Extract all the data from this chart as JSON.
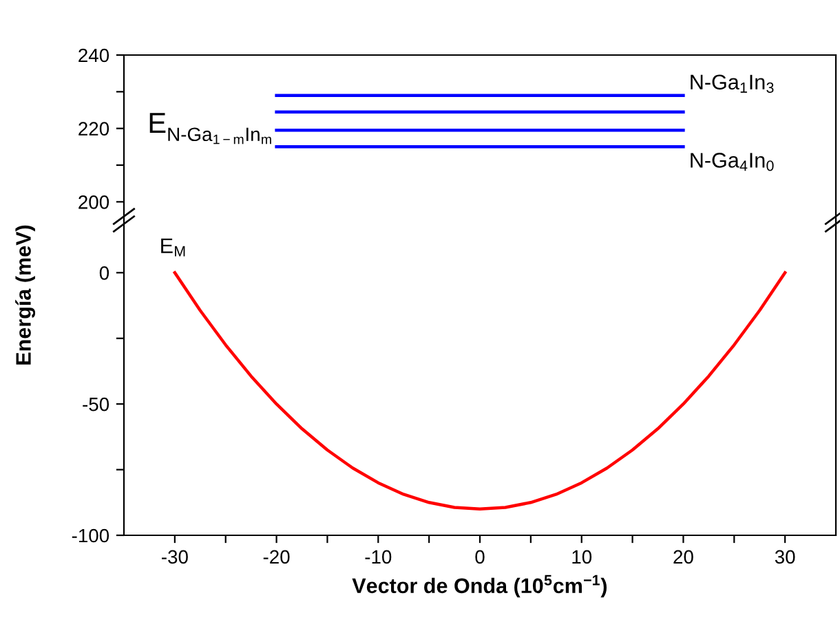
{
  "chart_data": [
    {
      "type": "line",
      "xlim": [
        -35,
        35
      ],
      "ylim": [
        195,
        240
      ],
      "xticks": [
        {
          "value": -30,
          "label": null
        },
        {
          "value": -20,
          "label": null
        },
        {
          "value": -10,
          "label": null
        },
        {
          "value": 0,
          "label": null
        },
        {
          "value": 10,
          "label": null
        },
        {
          "value": 20,
          "label": null
        },
        {
          "value": 30,
          "label": null
        }
      ],
      "yticks": [
        200,
        {
          "value": 210,
          "label": null
        },
        220,
        {
          "value": 230,
          "label": null
        },
        240
      ],
      "tick_labels": "y",
      "series": [
        {
          "color": "#0000ff",
          "x": [
            -20,
            20
          ],
          "values": [
            229,
            229
          ]
        },
        {
          "color": "#0000ff",
          "x": [
            -20,
            20
          ],
          "values": [
            224.5,
            224.5
          ]
        },
        {
          "color": "#0000ff",
          "x": [
            -20,
            20
          ],
          "values": [
            219.5,
            219.5
          ]
        },
        {
          "color": "#0000ff",
          "x": [
            -20,
            20
          ],
          "values": [
            215,
            215
          ]
        }
      ],
      "annotations": [
        {
          "text": "N-Ga$_{1}$In$_{3}$",
          "x": 20,
          "y": 229
        },
        {
          "text": "N-Ga$_{4}$In$_{0}$",
          "x": 20,
          "y": 215
        },
        "E",
        {
          "text": "N-Ga$_{1−m}$In$_{m}$",
          "x": -20,
          "y": 219.5
        }
      ]
    },
    {
      "type": "line",
      "xlabel": "Vector de Onda (10$^{5}$cm$^{−1}$)",
      "ylabel": "Energía (meV)",
      "xlim": [
        -35,
        35
      ],
      "ylim": [
        -100,
        20
      ],
      "xticks": [
        -30,
        {
          "value": -25,
          "label": null
        },
        -20,
        {
          "value": -15,
          "label": null
        },
        -10,
        {
          "value": -5,
          "label": null
        },
        0,
        {
          "value": 5,
          "label": null
        },
        10,
        {
          "value": 15,
          "label": null
        },
        20,
        {
          "value": 25,
          "label": null
        },
        30
      ],
      "yticks": [
        -100,
        {
          "value": -75,
          "label": null
        },
        -50,
        {
          "value": -25,
          "label": null
        },
        0
      ],
      "series": [
        {
          "color": "#ff0000",
          "x": [
            -30,
            -27.5,
            -25,
            -22.5,
            -20,
            -17.5,
            -15,
            -12.5,
            -10,
            -7.5,
            -5,
            -2.5,
            0,
            2.5,
            5,
            7.5,
            10,
            12.5,
            15,
            17.5,
            20,
            22.5,
            25,
            27.5,
            30
          ],
          "values": [
            0,
            -14.4,
            -27.5,
            -39.4,
            -50,
            -59.4,
            -67.5,
            -74.4,
            -80,
            -84.4,
            -87.5,
            -89.4,
            -90,
            -89.4,
            -87.5,
            -84.4,
            -80,
            -74.4,
            -67.5,
            -59.4,
            -50,
            -39.4,
            -27.5,
            -14.4,
            0
          ]
        }
      ],
      "annotations": [
        {
          "text": "E$_{M}$",
          "x": -30,
          "y": 0
        }
      ]
    }
  ]
}
